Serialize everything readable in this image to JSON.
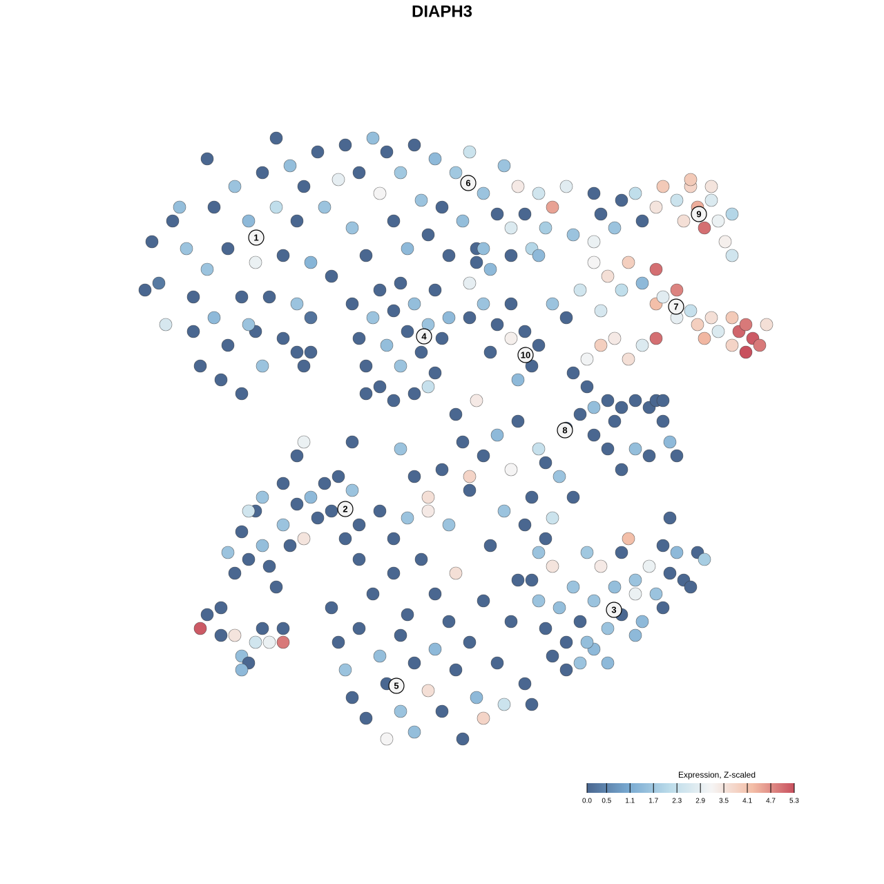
{
  "chart_data": {
    "type": "scatter",
    "title": "DIAPH3",
    "xlim": [
      0,
      128
    ],
    "ylim": [
      128,
      0
    ],
    "x": [
      22,
      23,
      21,
      24,
      25,
      27,
      28,
      28,
      29,
      30,
      31,
      31,
      32,
      33,
      33,
      34,
      35,
      35,
      36,
      37,
      37,
      38,
      38,
      39,
      40,
      41,
      41,
      42,
      43,
      43,
      44,
      44,
      45,
      46,
      47,
      48,
      49,
      50,
      51,
      52,
      53,
      54,
      55,
      56,
      57,
      58,
      59,
      60,
      61,
      62,
      63,
      64,
      65,
      66,
      67,
      68,
      69,
      70,
      71,
      72,
      73,
      74,
      75,
      76,
      77,
      78,
      79,
      80,
      82,
      83,
      30,
      26,
      40,
      45,
      36,
      51,
      52,
      53,
      54,
      55,
      55,
      56,
      57,
      58,
      58,
      59,
      60,
      60,
      61,
      62,
      63,
      63,
      64,
      65,
      62,
      53,
      57,
      68,
      70,
      72,
      74,
      74,
      76,
      77,
      75,
      78,
      80,
      82,
      71,
      69,
      70,
      68,
      87,
      89,
      90,
      92,
      93,
      95,
      96,
      98,
      99,
      100,
      101,
      102,
      103,
      104,
      105,
      106,
      100,
      103,
      86,
      88,
      90,
      91,
      93,
      95,
      95,
      96,
      98,
      100,
      101,
      102,
      103,
      104,
      106,
      107,
      108,
      109,
      110,
      108,
      111,
      106,
      98,
      87,
      87,
      89,
      91,
      93,
      95,
      85,
      84,
      86,
      106,
      83,
      85,
      86,
      88,
      89,
      90,
      92,
      94,
      95,
      96,
      97,
      98,
      94,
      92,
      90,
      88,
      86,
      84,
      82,
      96,
      33,
      34,
      35,
      36,
      37,
      38,
      39,
      40,
      41,
      42,
      43,
      44,
      45,
      46,
      47,
      48,
      49,
      50,
      51,
      52,
      41,
      38,
      36,
      43,
      44,
      48,
      49,
      50,
      51,
      52,
      53,
      54,
      55,
      56,
      56,
      57,
      58,
      58,
      59,
      60,
      60,
      61,
      62,
      62,
      63,
      63,
      64,
      65,
      65,
      66,
      66,
      67,
      68,
      68,
      69,
      70,
      70,
      71,
      72,
      73,
      73,
      74,
      75,
      76,
      77,
      57,
      59,
      62,
      60,
      64,
      67,
      70,
      72,
      75,
      78,
      79,
      81,
      83,
      77,
      74,
      68,
      76,
      78,
      80,
      52,
      55,
      77,
      78,
      79,
      80,
      81,
      82,
      83,
      84,
      85,
      86,
      86,
      87,
      88,
      89,
      90,
      90,
      91,
      92,
      93,
      94,
      95,
      96,
      97,
      98,
      99,
      101,
      102,
      100,
      96,
      92,
      80,
      82,
      84,
      88,
      79,
      97,
      85,
      92,
      29,
      30,
      32,
      34,
      35,
      36,
      37,
      38,
      39,
      41,
      41,
      32,
      35,
      51,
      58,
      66,
      69,
      74,
      78,
      86,
      43,
      45
    ],
    "y": [
      35,
      41,
      42,
      47,
      32,
      36,
      43,
      48,
      53,
      39,
      30,
      46,
      55,
      50,
      36,
      27,
      43,
      57,
      32,
      48,
      38,
      53,
      25,
      43,
      30,
      49,
      37,
      24,
      32,
      44,
      53,
      27,
      38,
      22,
      30,
      40,
      26,
      21,
      33,
      25,
      37,
      20,
      28,
      22,
      32,
      25,
      36,
      21,
      29,
      34,
      23,
      30,
      37,
      25,
      32,
      22,
      36,
      28,
      39,
      31,
      24,
      33,
      27,
      31,
      36,
      28,
      33,
      30,
      27,
      34,
      23,
      30,
      20,
      46,
      47,
      44,
      49,
      53,
      46,
      42,
      56,
      50,
      45,
      41,
      53,
      48,
      44,
      57,
      51,
      47,
      42,
      54,
      49,
      46,
      56,
      57,
      58,
      46,
      44,
      47,
      44,
      49,
      48,
      53,
      55,
      50,
      44,
      46,
      51,
      38,
      36,
      41,
      31,
      33,
      29,
      28,
      32,
      30,
      27,
      29,
      32,
      27,
      30,
      33,
      29,
      32,
      35,
      31,
      26,
      27,
      38,
      40,
      42,
      38,
      41,
      39,
      44,
      43,
      42,
      45,
      47,
      49,
      46,
      48,
      46,
      48,
      47,
      49,
      50,
      51,
      47,
      50,
      46,
      45,
      50,
      49,
      52,
      50,
      49,
      52,
      42,
      35,
      37,
      54,
      56,
      59,
      58,
      61,
      59,
      58,
      59,
      58,
      61,
      64,
      66,
      66,
      65,
      68,
      65,
      63,
      60,
      62,
      58,
      80,
      83,
      77,
      81,
      74,
      79,
      82,
      85,
      76,
      79,
      73,
      78,
      72,
      75,
      70,
      74,
      69,
      78,
      71,
      76,
      70,
      72,
      74,
      66,
      64,
      88,
      93,
      97,
      101,
      91,
      104,
      86,
      95,
      99,
      107,
      83,
      92,
      103,
      89,
      96,
      106,
      81,
      100,
      72,
      86,
      94,
      103,
      90,
      76,
      97,
      83,
      107,
      93,
      71,
      101,
      87,
      104,
      79,
      96,
      74,
      102,
      90,
      84,
      99,
      102,
      78,
      75,
      74,
      69,
      68,
      64,
      66,
      63,
      61,
      65,
      67,
      69,
      72,
      72,
      68,
      69,
      76,
      80,
      75,
      81,
      74,
      84,
      87,
      91,
      82,
      88,
      93,
      85,
      90,
      80,
      87,
      94,
      82,
      91,
      85,
      89,
      80,
      78,
      84,
      90,
      82,
      86,
      79,
      83,
      80,
      84,
      80,
      81,
      85,
      88,
      92,
      95,
      97,
      96,
      96,
      78,
      75,
      93,
      86,
      91,
      89,
      92,
      92,
      95,
      96,
      93,
      91,
      93,
      93,
      91,
      88,
      97,
      64,
      65,
      60,
      58,
      37,
      37,
      28,
      51,
      51
    ],
    "values": [
      0,
      0.3,
      0,
      2.6,
      0,
      1.6,
      0,
      0,
      0,
      1.6,
      0,
      1.4,
      0,
      0,
      0,
      1.6,
      0,
      0,
      1.4,
      0,
      3,
      1.6,
      0,
      0,
      2.2,
      0,
      0,
      1.5,
      0,
      1.6,
      0,
      0,
      1.3,
      0,
      1.6,
      0,
      2.9,
      0,
      1.6,
      0,
      0,
      1.5,
      3.2,
      0,
      0,
      1.7,
      1.4,
      0,
      1.6,
      0,
      1.4,
      0,
      0,
      1.7,
      1.5,
      2.4,
      0,
      1.6,
      1.4,
      0,
      1.6,
      2.7,
      3.4,
      0,
      2,
      2.5,
      1.8,
      4.5,
      2.8,
      1.6,
      0,
      1.5,
      0,
      0.2,
      1.6,
      0,
      0,
      0,
      1.6,
      0,
      0,
      1.5,
      0,
      0,
      1.6,
      0,
      1.5,
      0,
      0,
      1.6,
      0,
      0,
      0,
      1.4,
      2.3,
      0,
      0,
      0,
      1.6,
      0,
      0,
      3.3,
      0,
      0,
      1.4,
      0,
      1.6,
      0,
      0,
      0,
      1.5,
      2.9,
      0,
      1.6,
      0,
      2.2,
      0,
      3.5,
      4,
      2.4,
      3.6,
      3.8,
      4.4,
      5,
      2.7,
      3,
      3.3,
      2,
      4,
      3.5,
      3.2,
      3.6,
      2.2,
      3.9,
      1.4,
      5,
      4.2,
      2.8,
      4.8,
      2.3,
      3.9,
      4.3,
      3.6,
      2.7,
      4,
      5.1,
      4.9,
      5.2,
      4.9,
      5.3,
      3.6,
      3.8,
      2.9,
      2.6,
      3.9,
      3.4,
      3.6,
      2.7,
      5,
      3.1,
      2.5,
      3,
      2.5,
      0,
      0,
      1.5,
      0,
      0,
      0,
      0,
      0,
      0,
      0,
      1.4,
      0,
      0,
      1.5,
      0,
      0,
      0,
      0,
      0,
      0,
      1.6,
      0,
      0,
      0,
      0,
      1.5,
      0,
      0,
      1.6,
      0,
      0,
      3.5,
      1.4,
      0,
      0,
      0,
      0,
      0,
      1.6,
      0,
      0,
      1.6,
      2.5,
      0,
      3,
      0,
      0,
      1.6,
      0,
      0,
      0,
      0,
      1.5,
      0,
      3.2,
      0,
      0,
      1.6,
      0,
      0,
      1.5,
      0,
      3.6,
      3.6,
      0,
      1.4,
      0,
      0,
      1.6,
      0,
      3.6,
      0,
      0,
      0,
      1.4,
      0,
      3.8,
      0,
      0,
      1.6,
      2.4,
      0,
      0,
      0,
      0,
      0,
      1.6,
      3.4,
      0,
      0,
      0,
      0,
      1.4,
      0,
      2.3,
      0,
      1.6,
      0,
      0,
      3.2,
      3.8,
      0,
      1.6,
      2.4,
      0,
      0,
      0,
      1.6,
      0,
      3.5,
      1.5,
      0,
      1.6,
      0,
      1.7,
      1.6,
      1.4,
      3.4,
      1.6,
      1.5,
      0,
      0,
      4.2,
      1.6,
      1.4,
      3,
      1.6,
      0,
      0,
      1.4,
      0,
      0,
      1.8,
      0,
      0,
      1.4,
      0,
      0,
      1.6,
      1.4,
      0,
      0,
      1.5,
      3,
      5.2,
      0,
      0,
      3.5,
      1.5,
      0,
      2.5,
      0,
      3,
      4.9,
      0,
      0,
      1.4,
      0,
      1.6,
      0,
      3.4,
      0,
      1.4,
      0,
      0,
      0
    ],
    "clusters": [
      {
        "label": "1",
        "x": 37.1,
        "y": 34.4
      },
      {
        "label": "2",
        "x": 50.0,
        "y": 73.7
      },
      {
        "label": "3",
        "x": 88.9,
        "y": 88.3
      },
      {
        "label": "4",
        "x": 61.4,
        "y": 48.7
      },
      {
        "label": "5",
        "x": 57.4,
        "y": 99.3
      },
      {
        "label": "6",
        "x": 67.8,
        "y": 26.5
      },
      {
        "label": "7",
        "x": 97.9,
        "y": 44.4
      },
      {
        "label": "8",
        "x": 81.8,
        "y": 62.3
      },
      {
        "label": "9",
        "x": 101.2,
        "y": 31.0
      },
      {
        "label": "10",
        "x": 76.1,
        "y": 51.4
      }
    ],
    "colorbar": {
      "title": "Expression, Z-scaled",
      "lim": [
        0,
        5.3
      ],
      "ticks": [
        {
          "value": 0,
          "label": "0.0"
        },
        0.5,
        1.1,
        1.7,
        2.3,
        2.9,
        3.5,
        4.1,
        4.7,
        5.3
      ],
      "colors": [
        "#4a6790",
        "#78a9d1",
        "#bcdcea",
        "#f5f5f5",
        "#f3bda6",
        "#c8505e"
      ]
    }
  }
}
